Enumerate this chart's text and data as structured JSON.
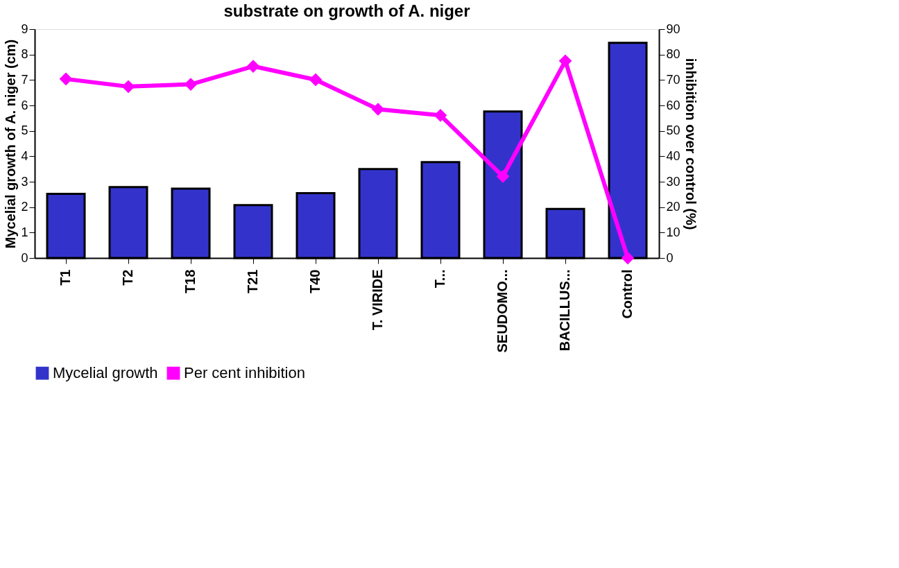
{
  "chart_data": {
    "type": "bar",
    "title": "substrate on growth of A. niger",
    "ylabel": "Mycelial growth of A. niger (cm)",
    "y2label": "inhibition over control (%)",
    "categories": [
      "T1",
      "T2",
      "T18",
      "T21",
      "T40",
      "T. VIRIDE",
      "T...",
      "SEUDOMO...",
      "BACILLUS...",
      "Control"
    ],
    "series": [
      {
        "name": "Mycelial growth",
        "color": "#3333cc",
        "values": [
          2.52,
          2.79,
          2.73,
          2.08,
          2.55,
          3.5,
          3.77,
          5.76,
          1.93,
          8.46
        ]
      },
      {
        "name": "Per cent inhibition",
        "type": "line",
        "axis": "y2",
        "color": "#ff00ff",
        "marker": "diamond",
        "values": [
          70.4,
          67.4,
          68.3,
          75.4,
          70.1,
          58.5,
          56.1,
          32.1,
          77.5,
          0
        ]
      }
    ],
    "ylim": [
      0,
      9
    ],
    "yticks": [
      0,
      1,
      2,
      3,
      4,
      5,
      6,
      7,
      8,
      9
    ],
    "y2lim": [
      0,
      90
    ],
    "y2ticks": [
      0,
      10,
      20,
      30,
      40,
      50,
      60,
      70,
      80,
      90
    ],
    "grid": false,
    "legend": "bottom"
  }
}
